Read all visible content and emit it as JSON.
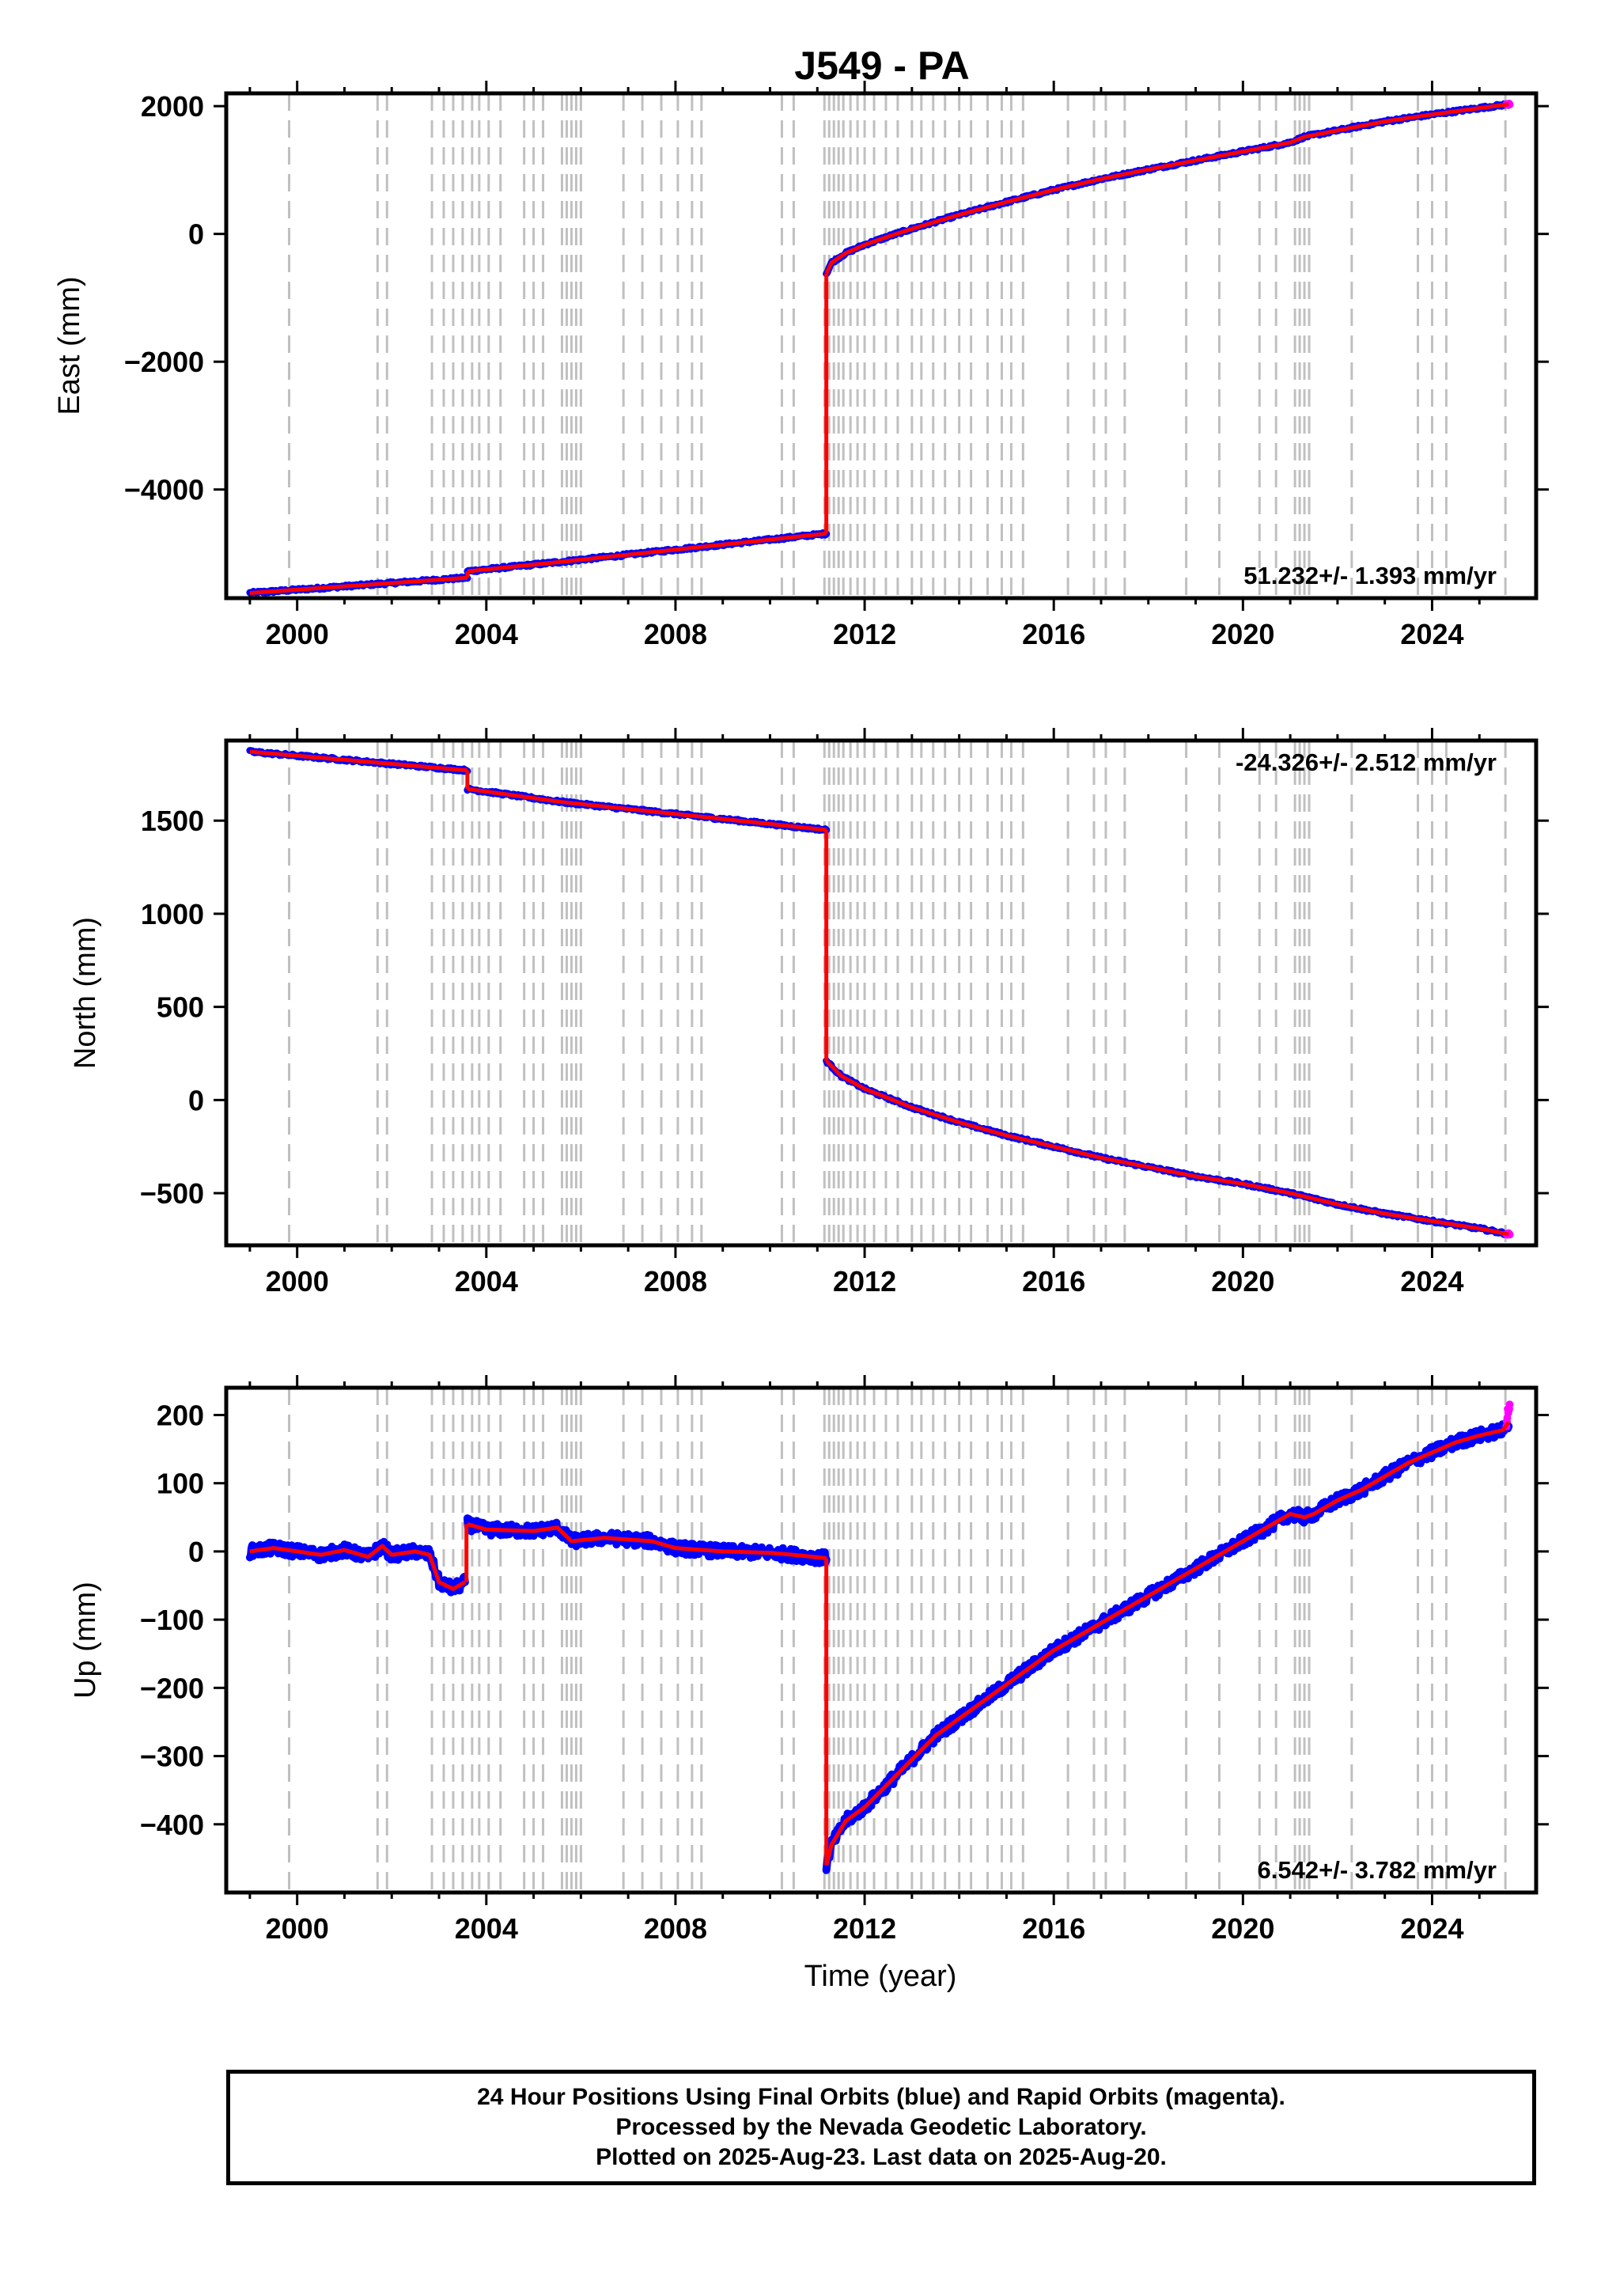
{
  "page": {
    "title": "J549 - PA",
    "xlabel": "Time (year)"
  },
  "chart_data": [
    {
      "type": "line",
      "name": "east",
      "ylabel": "East (mm)",
      "xlim": [
        1998.5,
        2026.2
      ],
      "ylim": [
        -5700,
        2200
      ],
      "xticks": [
        2000,
        2004,
        2008,
        2012,
        2016,
        2020,
        2024
      ],
      "yticks": [
        -4000,
        -2000,
        0,
        2000
      ],
      "ytick_labels": [
        "−4000",
        "−2000",
        "0",
        "2000"
      ],
      "rate_label": "51.232+/- 1.393 mm/yr",
      "rate_pos": "bottom-right",
      "segments": [
        {
          "x": [
            1999.0,
            2003.6
          ],
          "y": [
            -5620,
            -5380
          ]
        },
        {
          "x": [
            2003.6,
            2005.6,
            2011.19
          ],
          "y": [
            -5280,
            -5130,
            -4690
          ]
        },
        {
          "x": [
            2011.19,
            2011.3,
            2011.6,
            2012.0,
            2012.5,
            2013.0,
            2014.0,
            2015.0,
            2016.0,
            2017.0,
            2018.0,
            2019.0,
            2020.0,
            2021.0,
            2021.3,
            2022.0,
            2023.0,
            2024.0,
            2025.0,
            2025.62
          ],
          "y": [
            -620,
            -450,
            -300,
            -170,
            -40,
            80,
            300,
            500,
            690,
            860,
            1010,
            1150,
            1290,
            1430,
            1520,
            1620,
            1760,
            1870,
            1970,
            2030
          ]
        }
      ],
      "jumps": [
        [
          2003.6,
          -5380,
          -5280
        ],
        [
          2011.19,
          -4690,
          -620
        ]
      ]
    },
    {
      "type": "line",
      "name": "north",
      "ylabel": "North (mm)",
      "xlim": [
        1998.5,
        2026.2
      ],
      "ylim": [
        -780,
        1930
      ],
      "xticks": [
        2000,
        2004,
        2008,
        2012,
        2016,
        2020,
        2024
      ],
      "yticks": [
        -500,
        0,
        500,
        1000,
        1500
      ],
      "ytick_labels": [
        "−500",
        "0",
        "500",
        "1000",
        "1500"
      ],
      "rate_label": "-24.326+/- 2.512 mm/yr",
      "rate_pos": "top-right",
      "segments": [
        {
          "x": [
            1999.0,
            2003.6
          ],
          "y": [
            1870,
            1770
          ]
        },
        {
          "x": [
            2003.6,
            2005.6,
            2011.19
          ],
          "y": [
            1670,
            1600,
            1450
          ]
        },
        {
          "x": [
            2011.19,
            2011.5,
            2012.0,
            2012.5,
            2013.0,
            2014.0,
            2015.0,
            2016.0,
            2017.0,
            2018.0,
            2019.0,
            2020.0,
            2021.0,
            2022.0,
            2023.0,
            2024.0,
            2025.0,
            2025.62
          ],
          "y": [
            210,
            130,
            60,
            10,
            -40,
            -120,
            -190,
            -250,
            -310,
            -360,
            -410,
            -450,
            -500,
            -560,
            -610,
            -650,
            -690,
            -720
          ]
        }
      ],
      "jumps": [
        [
          2003.6,
          1770,
          1670
        ],
        [
          2011.19,
          1450,
          210
        ]
      ]
    },
    {
      "type": "line",
      "name": "up",
      "ylabel": "Up (mm)",
      "xlim": [
        1998.5,
        2026.2
      ],
      "ylim": [
        -500,
        240
      ],
      "xticks": [
        2000,
        2004,
        2008,
        2012,
        2016,
        2020,
        2024
      ],
      "yticks": [
        -400,
        -300,
        -200,
        -100,
        0,
        100,
        200
      ],
      "ytick_labels": [
        "−400",
        "−300",
        "−200",
        "−100",
        "0",
        "100",
        "200"
      ],
      "rate_label": "6.542+/- 3.782 mm/yr",
      "rate_pos": "bottom-right",
      "segments": [
        {
          "x": [
            1999.0,
            1999.5,
            2000.0,
            2000.5,
            2001.0,
            2001.5,
            2001.8,
            2002.0,
            2002.5,
            2002.8,
            2003.0,
            2003.3,
            2003.55
          ],
          "y": [
            0,
            5,
            0,
            -5,
            2,
            -8,
            8,
            -5,
            0,
            -5,
            -45,
            -55,
            -45
          ]
        },
        {
          "x": [
            2003.6,
            2004.0,
            2005.0,
            2005.5,
            2005.8,
            2006.5,
            2007.5,
            2008.0,
            2009.0,
            2010.0,
            2010.5,
            2011.19
          ],
          "y": [
            40,
            32,
            30,
            35,
            15,
            20,
            15,
            5,
            0,
            -2,
            -5,
            -10
          ]
        },
        {
          "x": [
            2011.19,
            2011.3,
            2011.6,
            2012.0,
            2012.5,
            2013.0,
            2013.5,
            2014.0,
            2014.5,
            2015.0,
            2015.5,
            2016.0,
            2016.5,
            2017.0,
            2017.5,
            2018.0,
            2018.5,
            2019.0,
            2019.5,
            2020.0,
            2020.5,
            2021.0,
            2021.3,
            2021.5,
            2022.0,
            2022.5,
            2023.0,
            2023.5,
            2024.0,
            2024.5,
            2025.0,
            2025.5,
            2025.62
          ],
          "y": [
            -460,
            -430,
            -395,
            -375,
            -340,
            -305,
            -270,
            -245,
            -220,
            -195,
            -170,
            -145,
            -125,
            -105,
            -85,
            -65,
            -45,
            -25,
            -5,
            15,
            35,
            55,
            50,
            55,
            75,
            90,
            110,
            130,
            145,
            160,
            170,
            178,
            190
          ]
        }
      ],
      "jumps": [
        [
          2003.58,
          -45,
          40
        ],
        [
          2011.19,
          -10,
          -460
        ]
      ]
    }
  ],
  "gray_dashed_x": [
    1999.83,
    2001.7,
    2001.9,
    2002.85,
    2003.1,
    2003.3,
    2003.5,
    2003.7,
    2003.85,
    2004.05,
    2004.3,
    2004.8,
    2005.0,
    2005.2,
    2005.6,
    2005.7,
    2005.8,
    2005.9,
    2006.0,
    2006.9,
    2007.3,
    2007.7,
    2008.05,
    2008.35,
    2008.55,
    2010.25,
    2010.5,
    2011.15,
    2011.25,
    2011.35,
    2011.45,
    2011.55,
    2011.7,
    2011.85,
    2012.0,
    2012.2,
    2012.45,
    2012.7,
    2013.0,
    2013.2,
    2013.45,
    2013.7,
    2014.0,
    2014.25,
    2014.6,
    2014.9,
    2015.1,
    2015.35,
    2016.3,
    2016.85,
    2017.1,
    2017.5,
    2018.8,
    2019.5,
    2020.35,
    2020.7,
    2021.1,
    2021.2,
    2021.3,
    2021.4,
    2022.3,
    2023.7,
    2024.0,
    2024.3,
    2025.55
  ],
  "footer": {
    "line1": "24 Hour Positions Using Final Orbits (blue) and Rapid Orbits (magenta).",
    "line2": "Processed by the Nevada Geodetic Laboratory.",
    "line3": "Plotted on 2025-Aug-23. Last data on 2025-Aug-20."
  },
  "colors": {
    "final_orbits": "#0000ff",
    "rapid_orbits": "#ff00ff",
    "model": "#ff0000",
    "events": "#c0c0c0",
    "axes": "#000000"
  }
}
